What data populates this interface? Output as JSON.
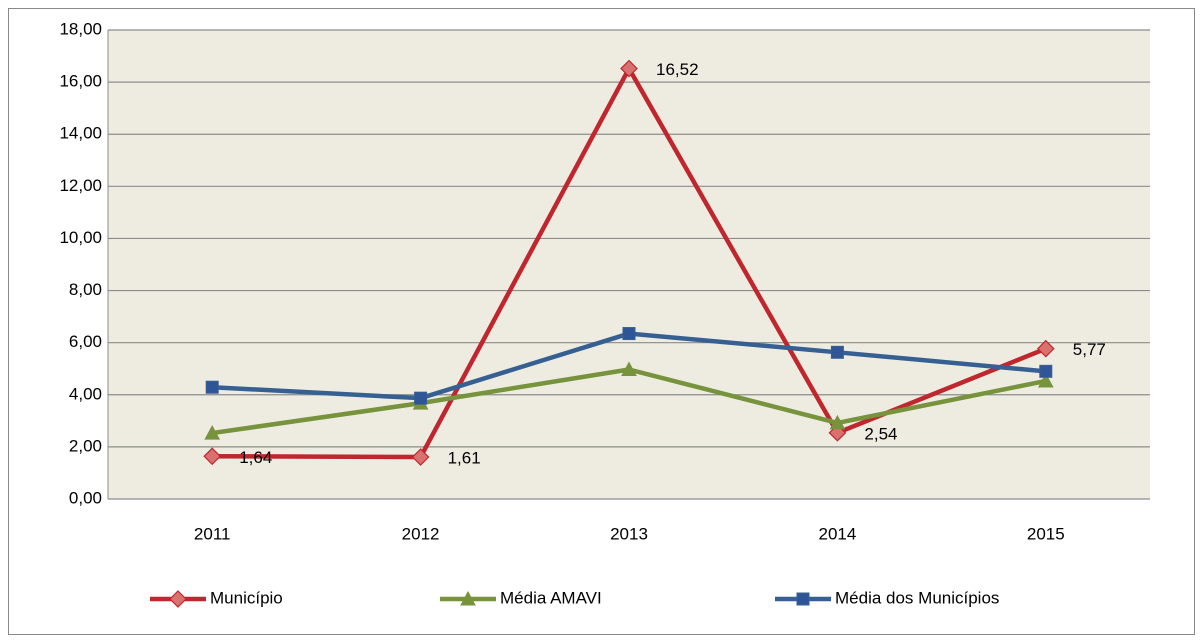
{
  "chart_data": {
    "type": "line",
    "categories": [
      "2011",
      "2012",
      "2013",
      "2014",
      "2015"
    ],
    "series": [
      {
        "name": "Município",
        "color": "#c0262d",
        "marker_color": "#d9716f",
        "marker": "diamond",
        "values": [
          1.64,
          1.61,
          16.52,
          2.54,
          5.77
        ],
        "value_labels": [
          "1,64",
          "1,61",
          "16,52",
          "2,54",
          "5,77"
        ]
      },
      {
        "name": "Média AMAVI",
        "color": "#77933c",
        "marker_color": "#77933c",
        "marker": "triangle",
        "values": [
          2.53,
          3.68,
          4.97,
          2.92,
          4.53
        ]
      },
      {
        "name": "Média dos Municípios",
        "color": "#376092",
        "marker_color": "#2f5597",
        "marker": "square",
        "values": [
          4.29,
          3.87,
          6.35,
          5.63,
          4.9
        ]
      }
    ],
    "ylim": [
      0,
      18
    ],
    "yticks": [
      {
        "value": 0,
        "label": "0,00"
      },
      {
        "value": 2,
        "label": "2,00"
      },
      {
        "value": 4,
        "label": "4,00"
      },
      {
        "value": 6,
        "label": "6,00"
      },
      {
        "value": 8,
        "label": "8,00"
      },
      {
        "value": 10,
        "label": "10,00"
      },
      {
        "value": 12,
        "label": "12,00"
      },
      {
        "value": 14,
        "label": "14,00"
      },
      {
        "value": 16,
        "label": "16,00"
      },
      {
        "value": 18,
        "label": "18,00"
      }
    ],
    "grid": true,
    "legend": "bottom"
  }
}
